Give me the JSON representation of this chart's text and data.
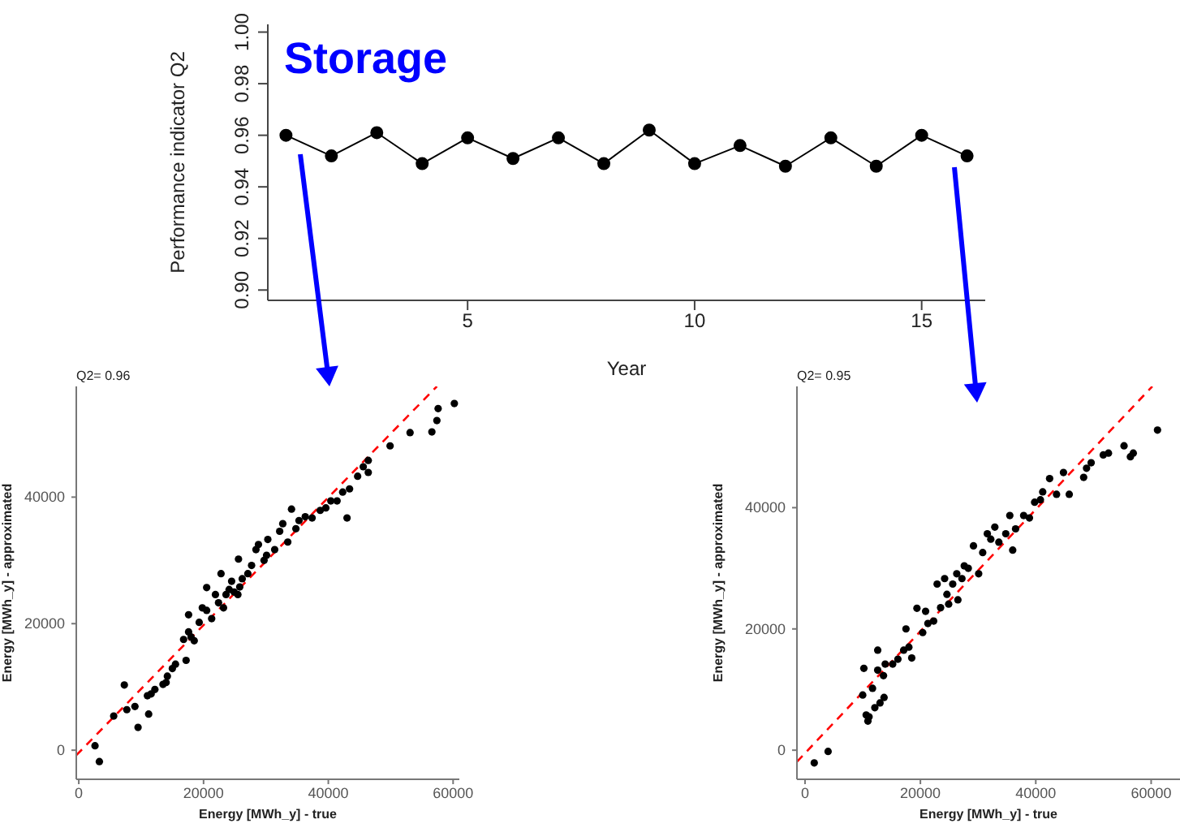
{
  "chart_data": [
    {
      "type": "line",
      "title": "Storage",
      "xlabel": "Year",
      "ylabel": "Performance indicator Q2",
      "x": [
        1,
        2,
        3,
        4,
        5,
        6,
        7,
        8,
        9,
        10,
        11,
        12,
        13,
        14,
        15,
        16
      ],
      "series": [
        {
          "color": "#000000",
          "values": [
            0.96,
            0.952,
            0.961,
            0.949,
            0.959,
            0.951,
            0.959,
            0.949,
            0.962,
            0.949,
            0.956,
            0.948,
            0.959,
            0.948,
            0.96,
            0.952
          ]
        }
      ],
      "marker": "circle",
      "xlim": [
        0.6,
        16.4
      ],
      "xticks": [
        5,
        10,
        15
      ],
      "ylim": [
        0.896,
        1.003
      ],
      "yticks": [
        {
          "value": 0.9,
          "label": "0.90"
        },
        {
          "value": 0.92,
          "label": "0.92"
        },
        {
          "value": 0.94,
          "label": "0.94"
        },
        {
          "value": 0.96,
          "label": "0.96"
        },
        {
          "value": 0.98,
          "label": "0.98"
        },
        {
          "value": 1.0,
          "label": "1.00"
        }
      ]
    },
    {
      "type": "scatter",
      "title": "Q2= 0.96",
      "xlabel": "Energy [MWh_y] - true",
      "ylabel": "Energy [MWh_y] - approximated",
      "xlim": [
        -400,
        61000
      ],
      "xticks": [
        0,
        20000,
        40000,
        60000
      ],
      "ylim": [
        -4600,
        57500
      ],
      "yticks": [
        0,
        20000,
        40000
      ],
      "series": [
        {
          "color": "#000000",
          "x": [
            2600,
            3300,
            5600,
            7300,
            7700,
            9000,
            9500,
            11200,
            11000,
            11600,
            12200,
            13500,
            14000,
            14200,
            15000,
            15500,
            17200,
            16800,
            17600,
            18000,
            18500,
            17600,
            19300,
            19800,
            20500,
            20500,
            21300,
            21900,
            22400,
            22800,
            23200,
            23600,
            24100,
            24500,
            24900,
            25500,
            25800,
            26200,
            25600,
            27100,
            27700,
            28400,
            28800,
            29700,
            30100,
            30300,
            31400,
            32200,
            32700,
            33500,
            34100,
            34800,
            35300,
            36300,
            37400,
            38700,
            39600,
            40400,
            41400,
            43000,
            42300,
            43400,
            44700,
            45600,
            46400,
            46400,
            49900,
            53100,
            56600,
            57400,
            57600,
            60200
          ],
          "values": [
            700,
            -1800,
            5400,
            10300,
            6400,
            6900,
            3600,
            5700,
            8600,
            8900,
            9600,
            10400,
            10700,
            11700,
            12900,
            13600,
            14200,
            17500,
            18700,
            17900,
            17300,
            21400,
            20200,
            22500,
            22100,
            25700,
            20800,
            24600,
            23300,
            27900,
            22500,
            24600,
            25400,
            26700,
            25000,
            24600,
            25800,
            27100,
            30200,
            27900,
            29200,
            31700,
            32500,
            30000,
            30800,
            33300,
            31700,
            34600,
            35800,
            32900,
            38100,
            35000,
            36300,
            36900,
            36700,
            37900,
            38300,
            39400,
            39400,
            36700,
            40800,
            41300,
            43300,
            44800,
            45800,
            43900,
            48100,
            50200,
            50300,
            52100,
            54000,
            54800
          ]
        },
        {
          "type": "line",
          "color": "#ff0000",
          "line_style": "dashed",
          "x": [
            -400,
            57400
          ],
          "values": [
            -800,
            57500
          ]
        }
      ]
    },
    {
      "type": "scatter",
      "title": "Q2= 0.95",
      "xlabel": "Energy [MWh_y] - true",
      "ylabel": "Energy [MWh_y] - approximated",
      "xlim": [
        -1400,
        65000
      ],
      "xticks": [
        0,
        20000,
        40000,
        60000
      ],
      "ylim": [
        -4800,
        60000
      ],
      "yticks": [
        0,
        20000,
        40000
      ],
      "series": [
        {
          "color": "#000000",
          "x": [
            1600,
            4000,
            10000,
            10200,
            10600,
            10900,
            11100,
            11700,
            12100,
            12600,
            12600,
            13000,
            13600,
            13700,
            13900,
            15200,
            16100,
            17100,
            18000,
            18500,
            17500,
            19400,
            20400,
            20900,
            21300,
            22300,
            22900,
            23500,
            24200,
            24600,
            24900,
            25600,
            26500,
            26300,
            27200,
            27600,
            28300,
            29200,
            30100,
            30800,
            31600,
            32200,
            32900,
            33600,
            34800,
            35500,
            36000,
            36500,
            37900,
            38900,
            39800,
            40800,
            41200,
            42400,
            43600,
            44800,
            45800,
            48300,
            48800,
            49600,
            51700,
            52600,
            55300,
            56400,
            56900,
            61100
          ],
          "values": [
            -2100,
            -200,
            9100,
            13500,
            5800,
            4800,
            5500,
            10200,
            7000,
            13200,
            16500,
            7800,
            12300,
            8700,
            14200,
            14200,
            15000,
            16500,
            17000,
            15200,
            20000,
            23400,
            19400,
            22900,
            20900,
            21300,
            27400,
            23500,
            28300,
            25700,
            24100,
            27400,
            24800,
            29100,
            28300,
            30400,
            30000,
            33700,
            29100,
            32600,
            35700,
            34800,
            36800,
            34300,
            35700,
            38700,
            33000,
            36500,
            38700,
            38300,
            40900,
            41300,
            42600,
            44800,
            42200,
            45800,
            42200,
            45000,
            46500,
            47400,
            48700,
            49000,
            50200,
            48400,
            49000,
            52800
          ]
        },
        {
          "type": "line",
          "color": "#ff0000",
          "line_style": "dashed",
          "x": [
            -1400,
            60200
          ],
          "values": [
            -1900,
            60000
          ]
        }
      ]
    }
  ]
}
